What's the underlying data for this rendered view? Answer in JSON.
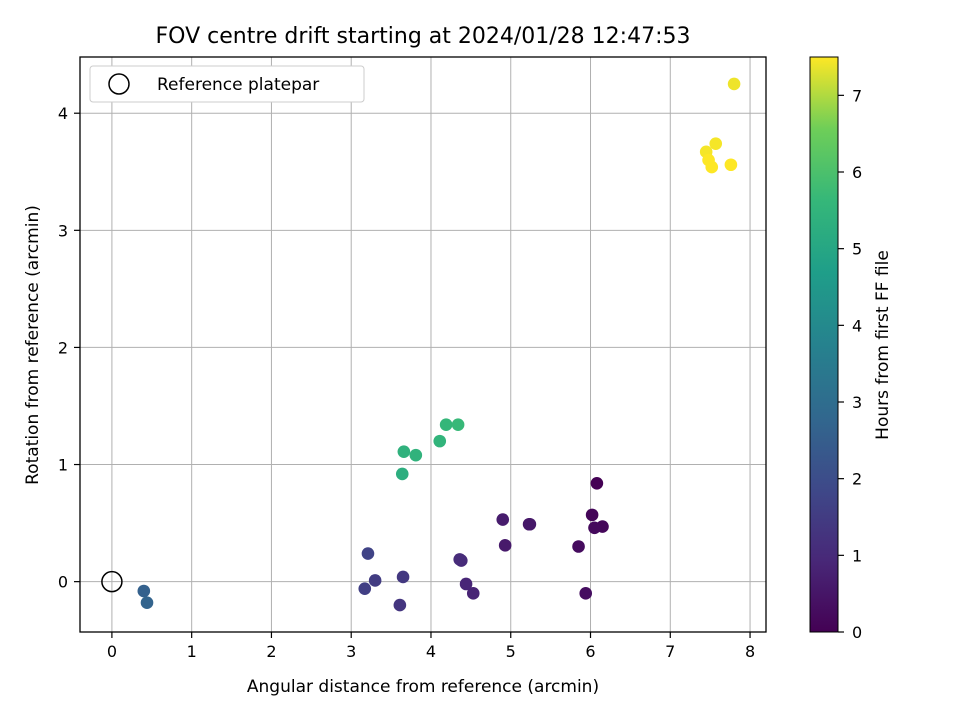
{
  "chart_data": {
    "type": "scatter",
    "title": "FOV centre drift starting at 2024/01/28 12:47:53",
    "xlabel": "Angular distance from reference (arcmin)",
    "ylabel": "Rotation from reference (arcmin)",
    "xlim": [
      -0.4,
      8.2
    ],
    "ylim": [
      -0.43,
      4.48
    ],
    "xticks": [
      0,
      1,
      2,
      3,
      4,
      5,
      6,
      7,
      8
    ],
    "yticks": [
      0,
      1,
      2,
      3,
      4
    ],
    "grid": true,
    "legend": {
      "position": "top-left",
      "entries": [
        "Reference platepar"
      ]
    },
    "reference_point": {
      "x": 0,
      "y": 0,
      "label": "Reference platepar"
    },
    "colorbar": {
      "label": "Hours from first FF file",
      "min": 0,
      "max": 7.5,
      "ticks": [
        0,
        1,
        2,
        3,
        4,
        5,
        6,
        7
      ],
      "colormap": "viridis"
    },
    "points": [
      {
        "x": 6.08,
        "y": 0.84,
        "hours": 0.0
      },
      {
        "x": 6.02,
        "y": 0.57,
        "hours": 0.1
      },
      {
        "x": 6.15,
        "y": 0.47,
        "hours": 0.15
      },
      {
        "x": 6.05,
        "y": 0.46,
        "hours": 0.2
      },
      {
        "x": 5.85,
        "y": 0.3,
        "hours": 0.25
      },
      {
        "x": 5.94,
        "y": -0.1,
        "hours": 0.3
      },
      {
        "x": 5.23,
        "y": 0.49,
        "hours": 0.5
      },
      {
        "x": 5.24,
        "y": 0.49,
        "hours": 0.55
      },
      {
        "x": 4.93,
        "y": 0.31,
        "hours": 0.6
      },
      {
        "x": 4.9,
        "y": 0.53,
        "hours": 0.65
      },
      {
        "x": 4.53,
        "y": -0.1,
        "hours": 0.85
      },
      {
        "x": 4.44,
        "y": -0.02,
        "hours": 0.9
      },
      {
        "x": 4.38,
        "y": 0.18,
        "hours": 1.0
      },
      {
        "x": 4.36,
        "y": 0.19,
        "hours": 1.05
      },
      {
        "x": 3.61,
        "y": -0.2,
        "hours": 1.3
      },
      {
        "x": 3.65,
        "y": 0.04,
        "hours": 1.4
      },
      {
        "x": 3.3,
        "y": 0.01,
        "hours": 1.5
      },
      {
        "x": 3.17,
        "y": -0.06,
        "hours": 1.6
      },
      {
        "x": 3.21,
        "y": 0.24,
        "hours": 1.7
      },
      {
        "x": 0.4,
        "y": -0.08,
        "hours": 2.6
      },
      {
        "x": 0.44,
        "y": -0.18,
        "hours": 2.7
      },
      {
        "x": 3.64,
        "y": 0.92,
        "hours": 5.3
      },
      {
        "x": 3.66,
        "y": 1.11,
        "hours": 5.4
      },
      {
        "x": 3.81,
        "y": 1.08,
        "hours": 5.45
      },
      {
        "x": 4.11,
        "y": 1.2,
        "hours": 5.5
      },
      {
        "x": 4.19,
        "y": 1.34,
        "hours": 5.6
      },
      {
        "x": 4.34,
        "y": 1.34,
        "hours": 5.65
      },
      {
        "x": 7.8,
        "y": 4.25,
        "hours": 7.4
      },
      {
        "x": 7.57,
        "y": 3.74,
        "hours": 7.45
      },
      {
        "x": 7.45,
        "y": 3.67,
        "hours": 7.45
      },
      {
        "x": 7.48,
        "y": 3.6,
        "hours": 7.5
      },
      {
        "x": 7.52,
        "y": 3.54,
        "hours": 7.5
      },
      {
        "x": 7.76,
        "y": 3.56,
        "hours": 7.5
      }
    ]
  }
}
